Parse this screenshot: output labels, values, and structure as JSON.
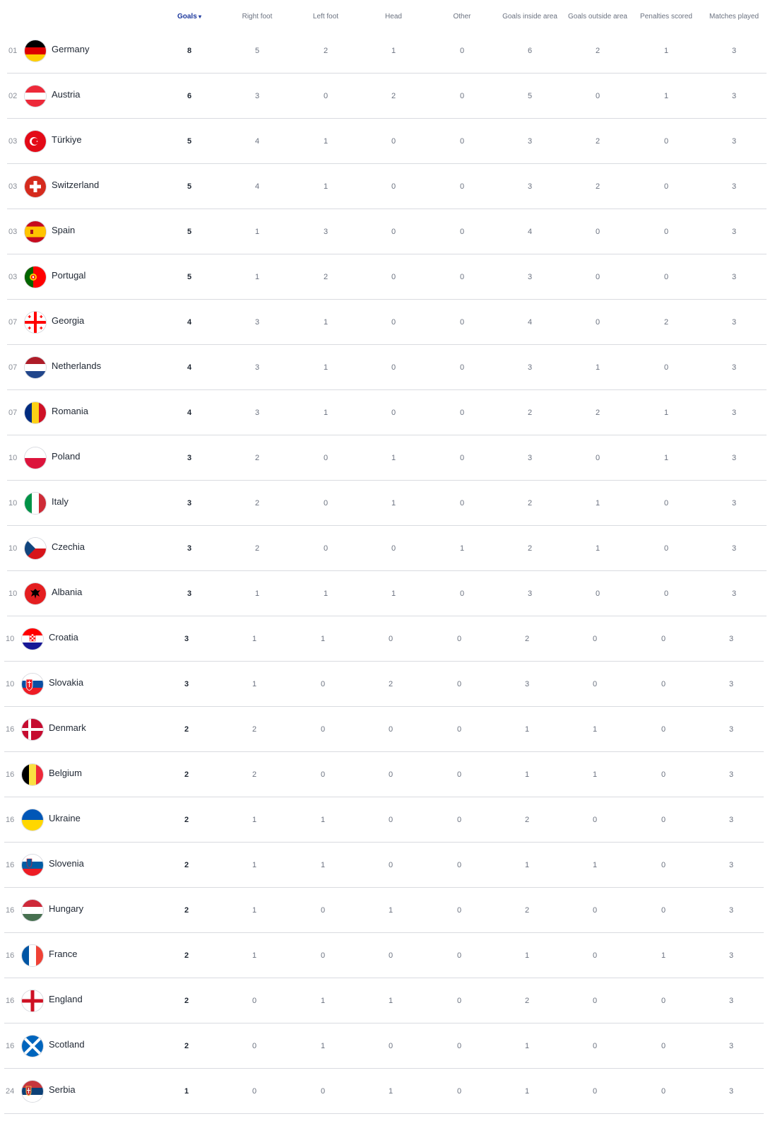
{
  "header": {
    "columns": [
      {
        "key": "goals",
        "label": "Goals",
        "sorted": true
      },
      {
        "key": "right_foot",
        "label": "Right foot"
      },
      {
        "key": "left_foot",
        "label": "Left foot"
      },
      {
        "key": "head",
        "label": "Head"
      },
      {
        "key": "other",
        "label": "Other"
      },
      {
        "key": "inside",
        "label": "Goals inside area"
      },
      {
        "key": "outside",
        "label": "Goals outside area"
      },
      {
        "key": "penalties",
        "label": "Penalties scored"
      },
      {
        "key": "matches",
        "label": "Matches played"
      }
    ]
  },
  "rows": [
    {
      "rank": "01",
      "team": "Germany",
      "flag": "germany-flag-icon",
      "goals": "8",
      "right_foot": "5",
      "left_foot": "2",
      "head": "1",
      "other": "0",
      "inside": "6",
      "outside": "2",
      "penalties": "1",
      "matches": "3"
    },
    {
      "rank": "02",
      "team": "Austria",
      "flag": "austria-flag-icon",
      "goals": "6",
      "right_foot": "3",
      "left_foot": "0",
      "head": "2",
      "other": "0",
      "inside": "5",
      "outside": "0",
      "penalties": "1",
      "matches": "3"
    },
    {
      "rank": "03",
      "team": "Türkiye",
      "flag": "turkiye-flag-icon",
      "goals": "5",
      "right_foot": "4",
      "left_foot": "1",
      "head": "0",
      "other": "0",
      "inside": "3",
      "outside": "2",
      "penalties": "0",
      "matches": "3"
    },
    {
      "rank": "03",
      "team": "Switzerland",
      "flag": "switzerland-flag-icon",
      "goals": "5",
      "right_foot": "4",
      "left_foot": "1",
      "head": "0",
      "other": "0",
      "inside": "3",
      "outside": "2",
      "penalties": "0",
      "matches": "3"
    },
    {
      "rank": "03",
      "team": "Spain",
      "flag": "spain-flag-icon",
      "goals": "5",
      "right_foot": "1",
      "left_foot": "3",
      "head": "0",
      "other": "0",
      "inside": "4",
      "outside": "0",
      "penalties": "0",
      "matches": "3"
    },
    {
      "rank": "03",
      "team": "Portugal",
      "flag": "portugal-flag-icon",
      "goals": "5",
      "right_foot": "1",
      "left_foot": "2",
      "head": "0",
      "other": "0",
      "inside": "3",
      "outside": "0",
      "penalties": "0",
      "matches": "3"
    },
    {
      "rank": "07",
      "team": "Georgia",
      "flag": "georgia-flag-icon",
      "goals": "4",
      "right_foot": "3",
      "left_foot": "1",
      "head": "0",
      "other": "0",
      "inside": "4",
      "outside": "0",
      "penalties": "2",
      "matches": "3"
    },
    {
      "rank": "07",
      "team": "Netherlands",
      "flag": "netherlands-flag-icon",
      "goals": "4",
      "right_foot": "3",
      "left_foot": "1",
      "head": "0",
      "other": "0",
      "inside": "3",
      "outside": "1",
      "penalties": "0",
      "matches": "3"
    },
    {
      "rank": "07",
      "team": "Romania",
      "flag": "romania-flag-icon",
      "goals": "4",
      "right_foot": "3",
      "left_foot": "1",
      "head": "0",
      "other": "0",
      "inside": "2",
      "outside": "2",
      "penalties": "1",
      "matches": "3"
    },
    {
      "rank": "10",
      "team": "Poland",
      "flag": "poland-flag-icon",
      "goals": "3",
      "right_foot": "2",
      "left_foot": "0",
      "head": "1",
      "other": "0",
      "inside": "3",
      "outside": "0",
      "penalties": "1",
      "matches": "3"
    },
    {
      "rank": "10",
      "team": "Italy",
      "flag": "italy-flag-icon",
      "goals": "3",
      "right_foot": "2",
      "left_foot": "0",
      "head": "1",
      "other": "0",
      "inside": "2",
      "outside": "1",
      "penalties": "0",
      "matches": "3"
    },
    {
      "rank": "10",
      "team": "Czechia",
      "flag": "czechia-flag-icon",
      "goals": "3",
      "right_foot": "2",
      "left_foot": "0",
      "head": "0",
      "other": "1",
      "inside": "2",
      "outside": "1",
      "penalties": "0",
      "matches": "3"
    },
    {
      "rank": "10",
      "team": "Albania",
      "flag": "albania-flag-icon",
      "goals": "3",
      "right_foot": "1",
      "left_foot": "1",
      "head": "1",
      "other": "0",
      "inside": "3",
      "outside": "0",
      "penalties": "0",
      "matches": "3"
    },
    {
      "rank": "10",
      "team": "Croatia",
      "flag": "croatia-flag-icon",
      "goals": "3",
      "right_foot": "1",
      "left_foot": "1",
      "head": "0",
      "other": "0",
      "inside": "2",
      "outside": "0",
      "penalties": "0",
      "matches": "3"
    },
    {
      "rank": "10",
      "team": "Slovakia",
      "flag": "slovakia-flag-icon",
      "goals": "3",
      "right_foot": "1",
      "left_foot": "0",
      "head": "2",
      "other": "0",
      "inside": "3",
      "outside": "0",
      "penalties": "0",
      "matches": "3"
    },
    {
      "rank": "16",
      "team": "Denmark",
      "flag": "denmark-flag-icon",
      "goals": "2",
      "right_foot": "2",
      "left_foot": "0",
      "head": "0",
      "other": "0",
      "inside": "1",
      "outside": "1",
      "penalties": "0",
      "matches": "3"
    },
    {
      "rank": "16",
      "team": "Belgium",
      "flag": "belgium-flag-icon",
      "goals": "2",
      "right_foot": "2",
      "left_foot": "0",
      "head": "0",
      "other": "0",
      "inside": "1",
      "outside": "1",
      "penalties": "0",
      "matches": "3"
    },
    {
      "rank": "16",
      "team": "Ukraine",
      "flag": "ukraine-flag-icon",
      "goals": "2",
      "right_foot": "1",
      "left_foot": "1",
      "head": "0",
      "other": "0",
      "inside": "2",
      "outside": "0",
      "penalties": "0",
      "matches": "3"
    },
    {
      "rank": "16",
      "team": "Slovenia",
      "flag": "slovenia-flag-icon",
      "goals": "2",
      "right_foot": "1",
      "left_foot": "1",
      "head": "0",
      "other": "0",
      "inside": "1",
      "outside": "1",
      "penalties": "0",
      "matches": "3"
    },
    {
      "rank": "16",
      "team": "Hungary",
      "flag": "hungary-flag-icon",
      "goals": "2",
      "right_foot": "1",
      "left_foot": "0",
      "head": "1",
      "other": "0",
      "inside": "2",
      "outside": "0",
      "penalties": "0",
      "matches": "3"
    },
    {
      "rank": "16",
      "team": "France",
      "flag": "france-flag-icon",
      "goals": "2",
      "right_foot": "1",
      "left_foot": "0",
      "head": "0",
      "other": "0",
      "inside": "1",
      "outside": "0",
      "penalties": "1",
      "matches": "3"
    },
    {
      "rank": "16",
      "team": "England",
      "flag": "england-flag-icon",
      "goals": "2",
      "right_foot": "0",
      "left_foot": "1",
      "head": "1",
      "other": "0",
      "inside": "2",
      "outside": "0",
      "penalties": "0",
      "matches": "3"
    },
    {
      "rank": "16",
      "team": "Scotland",
      "flag": "scotland-flag-icon",
      "goals": "2",
      "right_foot": "0",
      "left_foot": "1",
      "head": "0",
      "other": "0",
      "inside": "1",
      "outside": "0",
      "penalties": "0",
      "matches": "3"
    },
    {
      "rank": "24",
      "team": "Serbia",
      "flag": "serbia-flag-icon",
      "goals": "1",
      "right_foot": "0",
      "left_foot": "0",
      "head": "1",
      "other": "0",
      "inside": "1",
      "outside": "0",
      "penalties": "0",
      "matches": "3"
    }
  ],
  "colors": {
    "accent": "#1e3a9e",
    "divider": "#d9dbe0",
    "muted_text": "#6b7280",
    "text": "#1f2733"
  }
}
